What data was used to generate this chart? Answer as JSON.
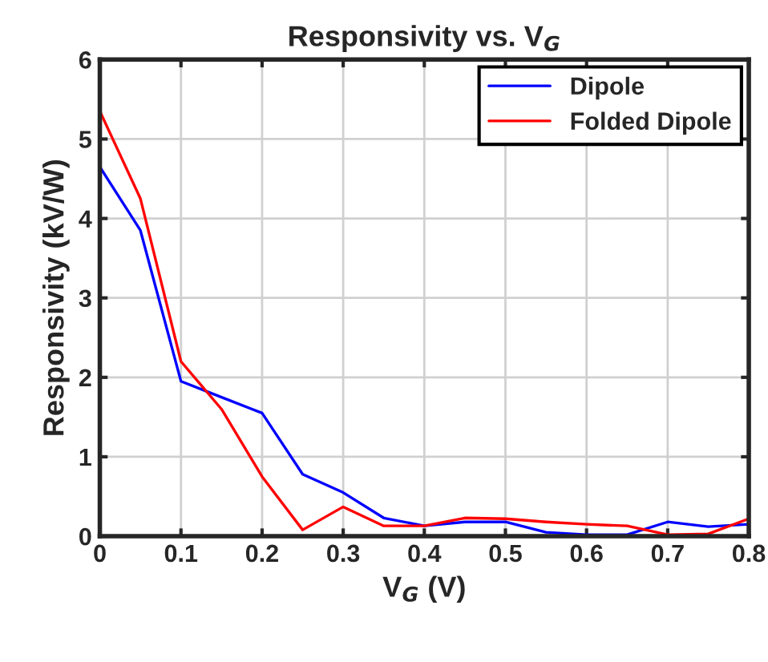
{
  "chart_data": {
    "type": "line",
    "title": "Responsivity vs. V$_{G}$",
    "xlabel": "V$_{G}$ (V)",
    "ylabel": "Responsivity (kV/W)",
    "x": [
      0,
      0.05,
      0.1,
      0.15,
      0.2,
      0.25,
      0.3,
      0.35,
      0.4,
      0.45,
      0.5,
      0.55,
      0.6,
      0.65,
      0.7,
      0.75,
      0.8
    ],
    "series": [
      {
        "name": "Dipole",
        "color": "#0000ff",
        "values": [
          4.65,
          3.85,
          1.95,
          1.75,
          1.55,
          0.78,
          0.55,
          0.23,
          0.13,
          0.18,
          0.18,
          0.05,
          0.02,
          0.02,
          0.18,
          0.12,
          0.15
        ]
      },
      {
        "name": "Folded Dipole",
        "color": "#ff0000",
        "values": [
          5.35,
          4.25,
          2.2,
          1.6,
          0.75,
          0.08,
          0.37,
          0.13,
          0.13,
          0.23,
          0.22,
          0.18,
          0.15,
          0.13,
          0.02,
          0.03,
          0.22
        ]
      }
    ],
    "xlim": [
      0,
      0.8
    ],
    "xticks": [
      0,
      0.1,
      0.2,
      0.3,
      0.4,
      0.5,
      0.6,
      0.7,
      0.8
    ],
    "ylim": [
      0,
      6
    ],
    "yticks": [
      0,
      1,
      2,
      3,
      4,
      5,
      6
    ],
    "grid": true,
    "legend": "top right"
  }
}
